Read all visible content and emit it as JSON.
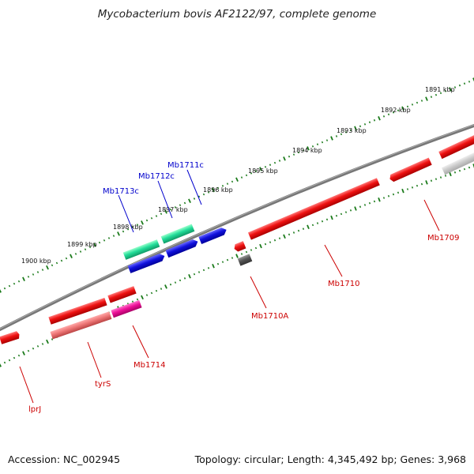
{
  "title": "Mycobacterium bovis AF2122/97, complete genome",
  "footer": {
    "accession": "Accession: NC_002945",
    "stats": "Topology: circular; Length: 4,345,492 bp; Genes: 3,968"
  },
  "kbp_labels": [
    "1891 kbp",
    "1892 kbp",
    "1893 kbp",
    "1894 kbp",
    "1895 kbp",
    "1896 kbp",
    "1897 kbp",
    "1898 kbp",
    "1899 kbp",
    "1900 kbp"
  ],
  "gene_labels_forward": [
    "Mb1711c",
    "Mb1712c",
    "Mb1713c"
  ],
  "gene_labels_reverse": [
    "Mb1709",
    "Mb1710",
    "Mb1710A",
    "Mb1714",
    "tyrS",
    "lprJ"
  ],
  "colors": {
    "backbone": "#777777",
    "forward_label": "#0000cc",
    "reverse_label": "#cc0000",
    "tick": "#1a7a1a",
    "gene_red": "#ee1111",
    "gene_blue": "#1111dd",
    "gene_green": "#22dd99",
    "gene_pink": "#ee1199",
    "gene_grey": "#555555",
    "gene_light": "#cccccc",
    "gene_salmon": "#ee7777"
  }
}
